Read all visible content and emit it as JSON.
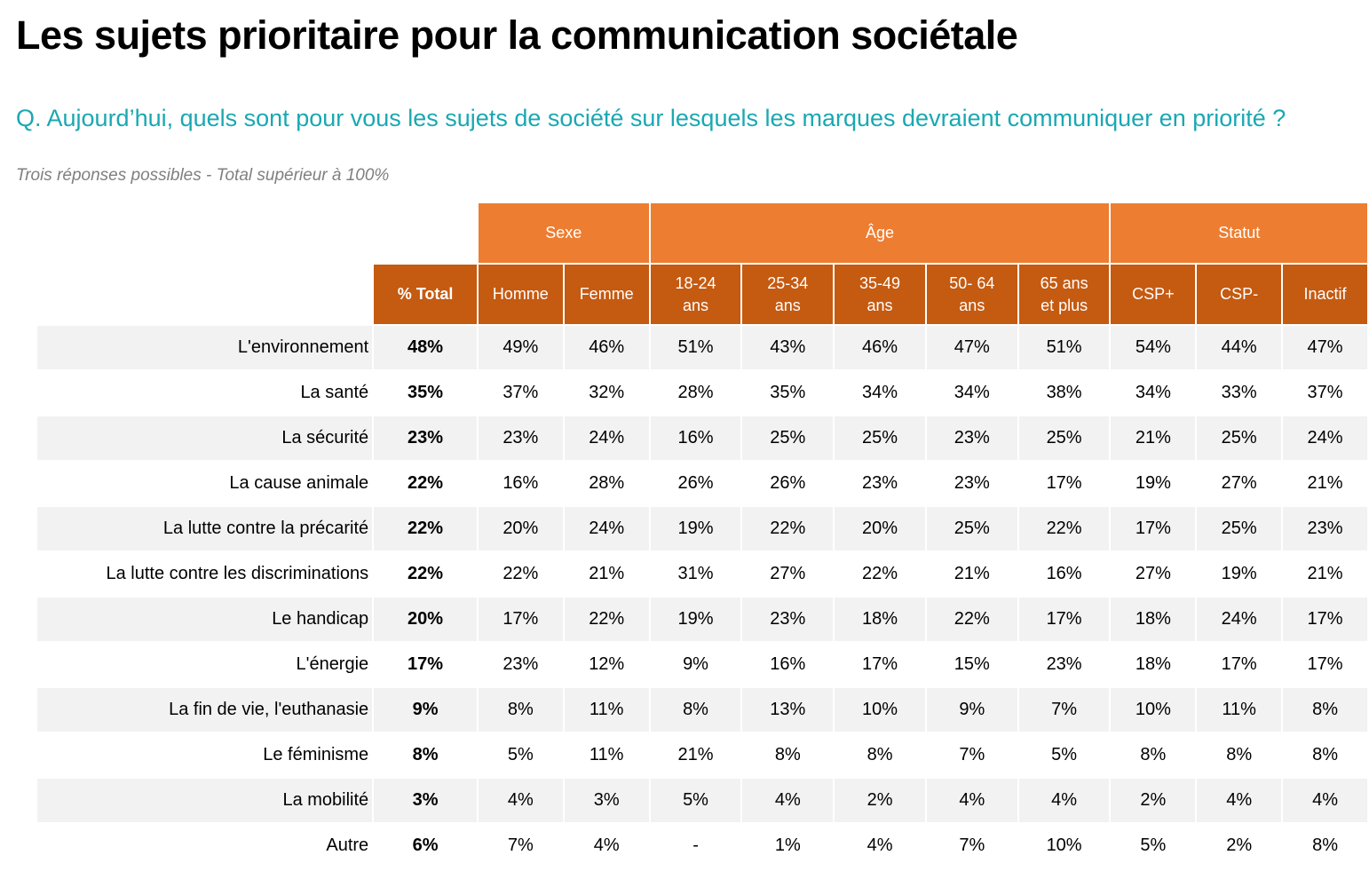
{
  "title": "Les sujets prioritaire pour la communication sociétale",
  "question": "Q. Aujourd’hui, quels sont pour vous les sujets de société sur lesquels les marques devraient communiquer en priorité ?",
  "note": "Trois réponses possibles - Total supérieur à 100%",
  "colors": {
    "group_header": "#ed7d31",
    "sub_header": "#c55a11",
    "question": "#1aa8b2",
    "row_shade": "#f2f2f2"
  },
  "chart_data": {
    "type": "table",
    "title": "Les sujets prioritaire pour la communication sociétale",
    "groups": [
      {
        "name": "",
        "span": 1
      },
      {
        "name": "Sexe",
        "span": 2
      },
      {
        "name": "Âge",
        "span": 5
      },
      {
        "name": "Statut",
        "span": 3
      }
    ],
    "columns": [
      "% Total",
      "Homme",
      "Femme",
      "18-24 ans",
      "25-34 ans",
      "35-49 ans",
      "50- 64 ans",
      "65 ans et plus",
      "CSP+",
      "CSP-",
      "Inactif"
    ],
    "column_lines": [
      [
        "% Total"
      ],
      [
        "Homme"
      ],
      [
        "Femme"
      ],
      [
        "18-24",
        "ans"
      ],
      [
        "25-34",
        "ans"
      ],
      [
        "35-49",
        "ans"
      ],
      [
        "50- 64",
        "ans"
      ],
      [
        "65 ans",
        "et plus"
      ],
      [
        "CSP+"
      ],
      [
        "CSP-"
      ],
      [
        "Inactif"
      ]
    ],
    "rows": [
      {
        "label": "L'environnement",
        "values": [
          "48%",
          "49%",
          "46%",
          "51%",
          "43%",
          "46%",
          "47%",
          "51%",
          "54%",
          "44%",
          "47%"
        ]
      },
      {
        "label": "La santé",
        "values": [
          "35%",
          "37%",
          "32%",
          "28%",
          "35%",
          "34%",
          "34%",
          "38%",
          "34%",
          "33%",
          "37%"
        ]
      },
      {
        "label": "La sécurité",
        "values": [
          "23%",
          "23%",
          "24%",
          "16%",
          "25%",
          "25%",
          "23%",
          "25%",
          "21%",
          "25%",
          "24%"
        ]
      },
      {
        "label": "La cause animale",
        "values": [
          "22%",
          "16%",
          "28%",
          "26%",
          "26%",
          "23%",
          "23%",
          "17%",
          "19%",
          "27%",
          "21%"
        ]
      },
      {
        "label": "La lutte contre la précarité",
        "values": [
          "22%",
          "20%",
          "24%",
          "19%",
          "22%",
          "20%",
          "25%",
          "22%",
          "17%",
          "25%",
          "23%"
        ]
      },
      {
        "label": "La lutte contre les discriminations",
        "values": [
          "22%",
          "22%",
          "21%",
          "31%",
          "27%",
          "22%",
          "21%",
          "16%",
          "27%",
          "19%",
          "21%"
        ]
      },
      {
        "label": "Le handicap",
        "values": [
          "20%",
          "17%",
          "22%",
          "19%",
          "23%",
          "18%",
          "22%",
          "17%",
          "18%",
          "24%",
          "17%"
        ]
      },
      {
        "label": "L'énergie",
        "values": [
          "17%",
          "23%",
          "12%",
          "9%",
          "16%",
          "17%",
          "15%",
          "23%",
          "18%",
          "17%",
          "17%"
        ]
      },
      {
        "label": "La fin de vie, l'euthanasie",
        "values": [
          "9%",
          "8%",
          "11%",
          "8%",
          "13%",
          "10%",
          "9%",
          "7%",
          "10%",
          "11%",
          "8%"
        ]
      },
      {
        "label": "Le féminisme",
        "values": [
          "8%",
          "5%",
          "11%",
          "21%",
          "8%",
          "8%",
          "7%",
          "5%",
          "8%",
          "8%",
          "8%"
        ]
      },
      {
        "label": "La mobilité",
        "values": [
          "3%",
          "4%",
          "3%",
          "5%",
          "4%",
          "2%",
          "4%",
          "4%",
          "2%",
          "4%",
          "4%"
        ]
      },
      {
        "label": "Autre",
        "values": [
          "6%",
          "7%",
          "4%",
          "-",
          "1%",
          "4%",
          "7%",
          "10%",
          "5%",
          "2%",
          "8%"
        ]
      }
    ]
  }
}
